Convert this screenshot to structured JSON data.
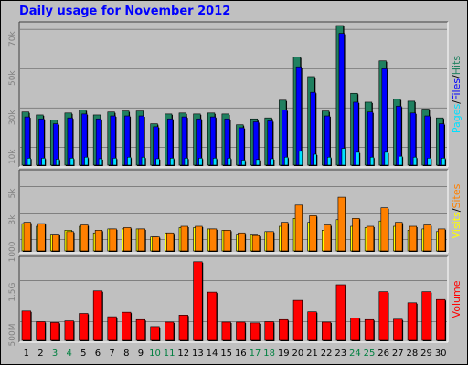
{
  "chart_data": {
    "type": "bar",
    "title": "Daily usage for November 2012",
    "categories": [
      "1",
      "2",
      "3",
      "4",
      "5",
      "6",
      "7",
      "8",
      "9",
      "10",
      "11",
      "12",
      "13",
      "14",
      "15",
      "16",
      "17",
      "18",
      "19",
      "20",
      "21",
      "22",
      "23",
      "24",
      "25",
      "26",
      "27",
      "28",
      "29",
      "30"
    ],
    "weekend_days": [
      "3",
      "4",
      "10",
      "11",
      "17",
      "18",
      "24",
      "25"
    ],
    "colors": {
      "hits": "#208060",
      "files": "#0000ff",
      "pages": "#00e0ff",
      "visits": "#ffff00",
      "sites": "#ff8000",
      "volume": "#ff0000",
      "panel_bg": "#c0c0c0",
      "weekday_label": "#000000",
      "weekend_label": "#008040"
    },
    "panels": [
      {
        "id": "hits-files-pages",
        "ytick_labels": [
          "70k",
          "50k",
          "30k",
          "10k"
        ],
        "ytick_values": [
          70000,
          50000,
          30000,
          10000
        ],
        "ylim": [
          0,
          72000
        ],
        "legend": [
          {
            "text": "Pages",
            "color": "#00e0ff"
          },
          {
            "text": "/",
            "color": "#000000"
          },
          {
            "text": "Files",
            "color": "#0000ff"
          },
          {
            "text": "/",
            "color": "#000000"
          },
          {
            "text": "Hits",
            "color": "#208060"
          }
        ],
        "series": [
          {
            "name": "Hits",
            "color": "#208060",
            "values": [
              28000,
              26500,
              24000,
              27500,
              29000,
              26500,
              28000,
              28500,
              28500,
              22000,
              27000,
              27500,
              27000,
              27500,
              27000,
              21500,
              24500,
              25000,
              34000,
              56000,
              46000,
              28500,
              72000,
              37500,
              33000,
              54000,
              34500,
              33500,
              29500,
              25000
            ]
          },
          {
            "name": "Files",
            "color": "#0000ff",
            "values": [
              25500,
              24500,
              22000,
              25000,
              27000,
              24500,
              26000,
              26000,
              26000,
              20500,
              24500,
              25500,
              24500,
              25500,
              24500,
              20000,
              23000,
              23500,
              29000,
              51000,
              38000,
              26000,
              68000,
              33000,
              28000,
              50000,
              31000,
              27500,
              26000,
              22000
            ]
          },
          {
            "name": "Pages",
            "color": "#00e0ff",
            "values": [
              4500,
              4500,
              4000,
              4500,
              5000,
              4200,
              4500,
              5000,
              5000,
              4200,
              4500,
              4500,
              4500,
              4500,
              4500,
              3500,
              3800,
              4200,
              5000,
              8000,
              6500,
              5000,
              9500,
              7500,
              5000,
              7500,
              5500,
              5000,
              4500,
              4500
            ]
          }
        ]
      },
      {
        "id": "visits-sites",
        "ytick_labels": [
          "5k",
          "3k",
          "1000"
        ],
        "ytick_values": [
          5000,
          3000,
          1000
        ],
        "ylim": [
          0,
          6000
        ],
        "legend": [
          {
            "text": "Visits",
            "color": "#ffff00"
          },
          {
            "text": "/",
            "color": "#000000"
          },
          {
            "text": "Sites",
            "color": "#ff8000"
          }
        ],
        "series": [
          {
            "name": "Visits",
            "color": "#ffff00",
            "values": [
              2200,
              2000,
              1400,
              1700,
              2000,
              1500,
              1800,
              1800,
              1800,
              1200,
              1500,
              1900,
              1900,
              1800,
              1700,
              1400,
              1400,
              1600,
              2000,
              2600,
              2300,
              1700,
              2500,
              2000,
              1900,
              2400,
              2000,
              1700,
              1800,
              1600
            ]
          },
          {
            "name": "Sites",
            "color": "#ff8000",
            "values": [
              2300,
              2200,
              1400,
              1600,
              2100,
              1700,
              1800,
              1900,
              1800,
              1200,
              1500,
              2000,
              2000,
              1800,
              1700,
              1500,
              1300,
              1600,
              2300,
              3600,
              2800,
              2100,
              4200,
              2600,
              2000,
              3400,
              2300,
              2000,
              2100,
              1800
            ]
          }
        ]
      },
      {
        "id": "volume",
        "ytick_labels": [
          "1.5G",
          "500M"
        ],
        "ytick_values": [
          1500,
          500
        ],
        "ylim": [
          0,
          2000
        ],
        "legend": [
          {
            "text": "Volume",
            "color": "#ff0000"
          }
        ],
        "series": [
          {
            "name": "Volume",
            "color": "#ff0000",
            "values": [
              760,
              500,
              480,
              520,
              700,
              1250,
              620,
              730,
              550,
              380,
              490,
              660,
              1960,
              1220,
              490,
              490,
              470,
              500,
              550,
              1020,
              740,
              490,
              1400,
              590,
              550,
              1230,
              560,
              960,
              1230,
              1040
            ]
          }
        ]
      }
    ]
  }
}
